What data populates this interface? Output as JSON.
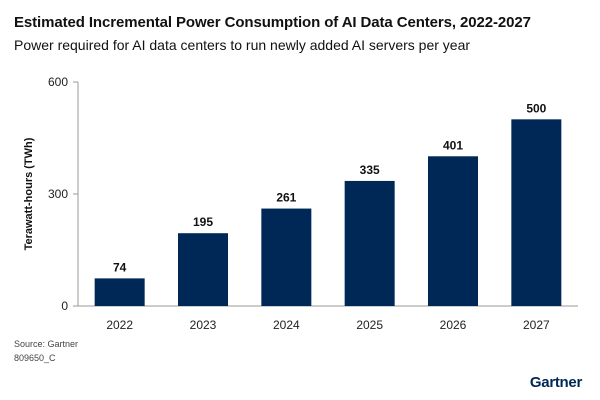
{
  "header": {
    "title": "Estimated Incremental Power Consumption of AI Data Centers, 2022-2027",
    "subtitle": "Power required for AI data centers to run newly added AI servers per year"
  },
  "chart_data": {
    "type": "bar",
    "title": "Estimated Incremental Power Consumption of AI Data Centers, 2022-2027",
    "subtitle": "Power required for AI data centers to run newly added AI servers per year",
    "categories": [
      "2022",
      "2023",
      "2024",
      "2025",
      "2026",
      "2027"
    ],
    "values": [
      74,
      195,
      261,
      335,
      401,
      500
    ],
    "data_labels": [
      "74",
      "195",
      "261",
      "335",
      "401",
      "500"
    ],
    "xlabel": "",
    "ylabel": "Terawatt-hours (TWh)",
    "ylim": [
      0,
      600
    ],
    "yticks": [
      0,
      300,
      600
    ],
    "ytick_labels": [
      "0",
      "300",
      "600"
    ],
    "grid": false,
    "legend": "none",
    "bar_color": "#002856",
    "axis_color": "#999999"
  },
  "footer": {
    "source": "Source: Gartner",
    "code": "809650_C",
    "brand": "Gartner"
  }
}
